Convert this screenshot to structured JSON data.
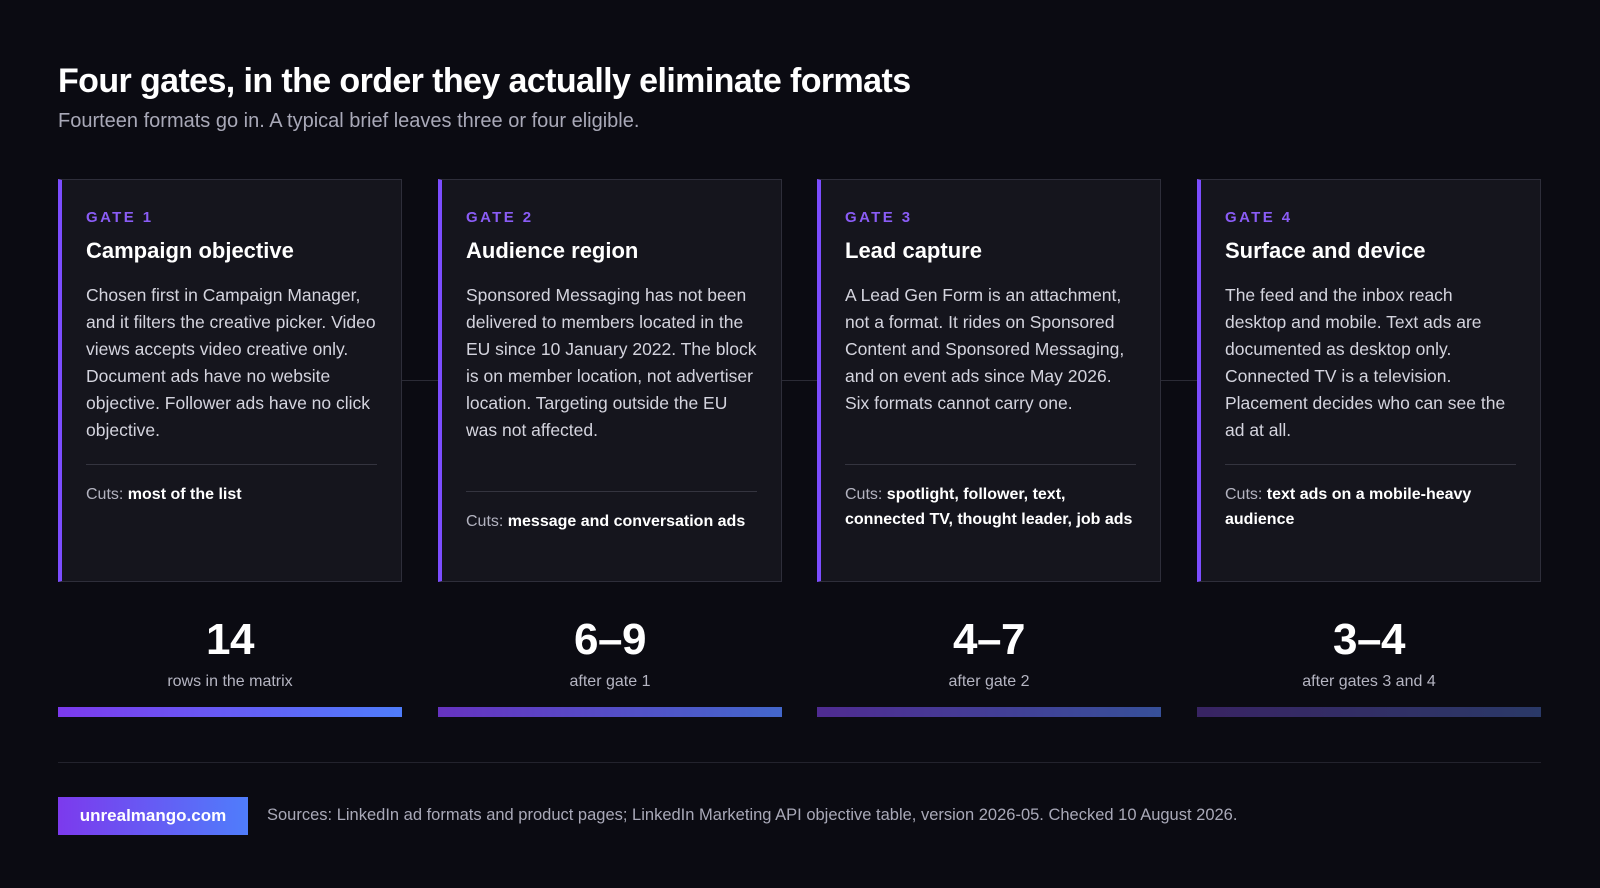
{
  "header": {
    "title": "Four gates, in the order they actually eliminate formats",
    "subtitle": "Fourteen formats go in. A typical brief leaves three or four eligible."
  },
  "gates": [
    {
      "label": "GATE 1",
      "title": "Campaign objective",
      "body": "Chosen first in Campaign Manager, and it filters the creative picker. Video views accepts video creative only. Document ads have no website objective. Follower ads have no click objective.",
      "cuts_prefix": "Cuts:",
      "cuts_value": "most of the list"
    },
    {
      "label": "GATE 2",
      "title": "Audience region",
      "body": "Sponsored Messaging has not been delivered to members located in the EU since 10 January 2022. The block is on member location, not advertiser location. Targeting outside the EU was not affected.",
      "cuts_prefix": "Cuts:",
      "cuts_value": "message and conversation ads"
    },
    {
      "label": "GATE 3",
      "title": "Lead capture",
      "body": "A Lead Gen Form is an attachment, not a format. It rides on Sponsored Content and Sponsored Messaging, and on event ads since May 2026. Six formats cannot carry one.",
      "cuts_prefix": "Cuts:",
      "cuts_value": "spotlight, follower, text, connected TV, thought leader, job ads"
    },
    {
      "label": "GATE 4",
      "title": "Surface and device",
      "body": "The feed and the inbox reach desktop and mobile. Text ads are documented as desktop only. Connected TV is a television. Placement decides who can see the ad at all.",
      "cuts_prefix": "Cuts:",
      "cuts_value": "text ads on a mobile-heavy audience"
    }
  ],
  "stats": [
    {
      "value": "14",
      "caption": "rows in the matrix",
      "bar_level": 1.0,
      "bar_opacity": 1.0
    },
    {
      "value": "6–9",
      "caption": "after gate 1",
      "bar_level": 1.0,
      "bar_opacity": 0.78
    },
    {
      "value": "4–7",
      "caption": "after gate 2",
      "bar_level": 1.0,
      "bar_opacity": 0.55
    },
    {
      "value": "3–4",
      "caption": "after gates 3 and 4",
      "bar_level": 1.0,
      "bar_opacity": 0.32
    }
  ],
  "colors": {
    "accent": "#7c4dff",
    "gradient_start": "#7c3aed",
    "gradient_end": "#4f7dfb"
  },
  "footer": {
    "brand": "unrealmango.com",
    "sources": "Sources: LinkedIn ad formats and product pages; LinkedIn Marketing API objective table, version 2026-05. Checked 10 August 2026."
  }
}
